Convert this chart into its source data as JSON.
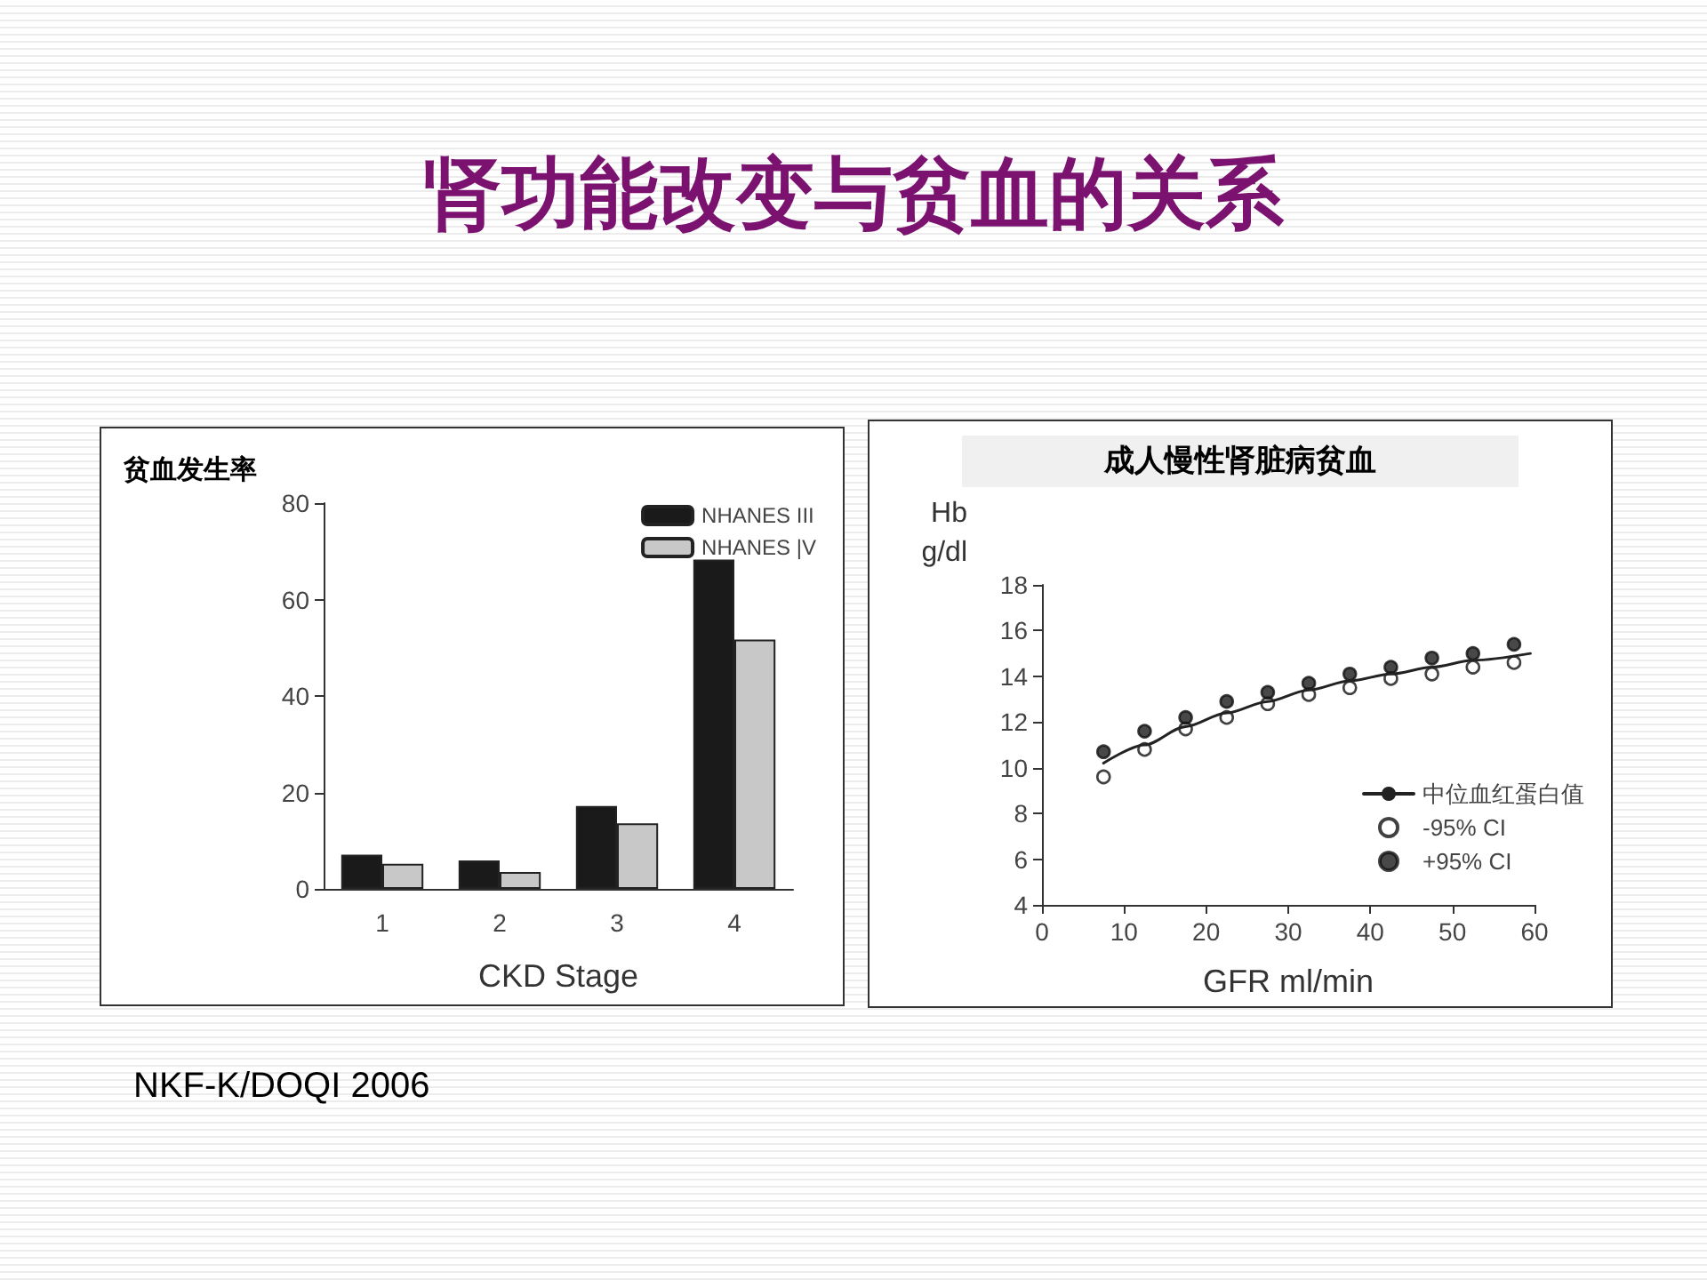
{
  "chart_data": [
    {
      "type": "bar",
      "title": "肾功能改变与贫血的关系",
      "ylabel": "贫血发生率",
      "xlabel": "CKD Stage",
      "categories": [
        "1",
        "2",
        "3",
        "4"
      ],
      "ylim": [
        0,
        80
      ],
      "yticks": [
        0,
        20,
        40,
        60,
        80
      ],
      "legend": "top right",
      "annotations": [
        "NKF-K/DOQI 2006"
      ],
      "series": [
        {
          "name": "NHANES III",
          "color": "#1a1a1a",
          "values": [
            7.1,
            5.9,
            17.2,
            68.3
          ]
        },
        {
          "name": "NHANES |V",
          "color": "#c8c8c8",
          "values": [
            5.2,
            3.5,
            13.6,
            51.7
          ]
        }
      ]
    },
    {
      "type": "scatter",
      "title": "成人慢性肾脏病贫血",
      "ylabel": "Hb\ng/dl",
      "xlabel": "GFR ml/min",
      "xlim": [
        0,
        60
      ],
      "xticks": [
        0,
        10,
        20,
        30,
        40,
        50,
        60
      ],
      "ylim": [
        4,
        18
      ],
      "yticks": [
        4,
        6,
        8,
        10,
        12,
        14,
        16,
        18
      ],
      "legend": "bottom right",
      "marker": "circle",
      "series": [
        {
          "name": "中位血红蛋白值",
          "type": "line",
          "marker": "none",
          "line_style": "solid",
          "color": "#222222",
          "x": [
            7.5,
            12.5,
            17.5,
            22.5,
            27.5,
            32.5,
            37.5,
            42.5,
            47.5,
            52.5,
            59.5
          ],
          "values": [
            10.2,
            11.0,
            11.8,
            12.4,
            12.9,
            13.4,
            13.8,
            14.1,
            14.4,
            14.7,
            15.0
          ]
        },
        {
          "name": "-95% CI",
          "color": "#ffffff",
          "x": [
            7.5,
            12.5,
            17.5,
            22.5,
            27.5,
            32.5,
            37.5,
            42.5,
            47.5,
            52.5,
            57.5
          ],
          "values": [
            9.6,
            10.8,
            11.7,
            12.2,
            12.8,
            13.2,
            13.5,
            13.9,
            14.1,
            14.4,
            14.6
          ]
        },
        {
          "name": "+95% CI",
          "color": "#1a1a1a",
          "x": [
            7.5,
            12.5,
            17.5,
            22.5,
            27.5,
            32.5,
            37.5,
            42.5,
            47.5,
            52.5,
            57.5
          ],
          "values": [
            10.7,
            11.6,
            12.2,
            12.9,
            13.3,
            13.7,
            14.1,
            14.4,
            14.8,
            15.0,
            15.4
          ]
        }
      ]
    }
  ]
}
